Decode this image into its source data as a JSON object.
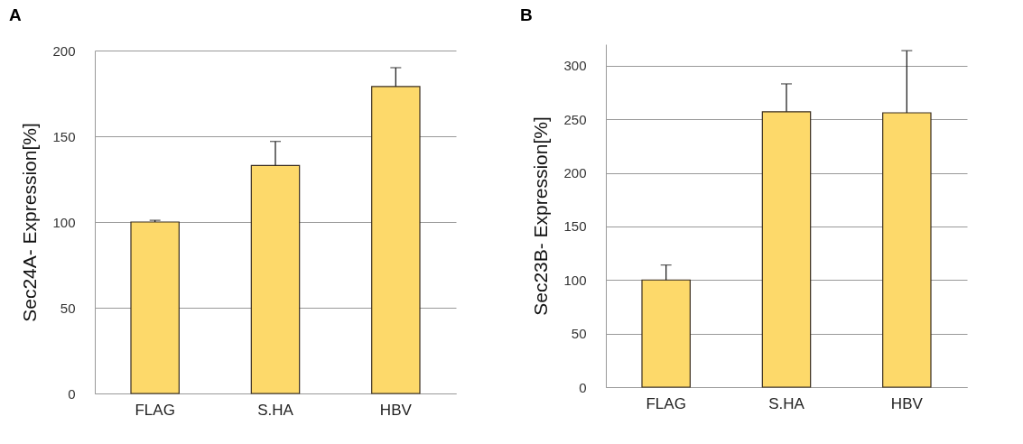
{
  "chart_data": [
    {
      "type": "bar",
      "title": "A",
      "ylabel": "Sec24A- Expression[%]",
      "categories": [
        "FLAG",
        "S.HA",
        "HBV"
      ],
      "values": [
        100,
        133,
        179
      ],
      "color": "#fdd96a",
      "errors": [
        [
          100,
          101
        ],
        [
          133,
          147
        ],
        [
          179,
          190
        ]
      ],
      "ylim": [
        0,
        200
      ],
      "yticks": [
        0,
        50,
        100,
        150,
        200
      ],
      "grid": "y"
    },
    {
      "type": "bar",
      "title": "B",
      "ylabel": "Sec23B- Expression[%]",
      "categories": [
        "FLAG",
        "S.HA",
        "HBV"
      ],
      "values": [
        100,
        257,
        256
      ],
      "color": "#fdd96a",
      "errors": [
        [
          100,
          114
        ],
        [
          257,
          283
        ],
        [
          256,
          314
        ]
      ],
      "ylim": [
        0,
        320
      ],
      "yticks": [
        0,
        50,
        100,
        150,
        200,
        250,
        300
      ],
      "grid": "y"
    }
  ]
}
